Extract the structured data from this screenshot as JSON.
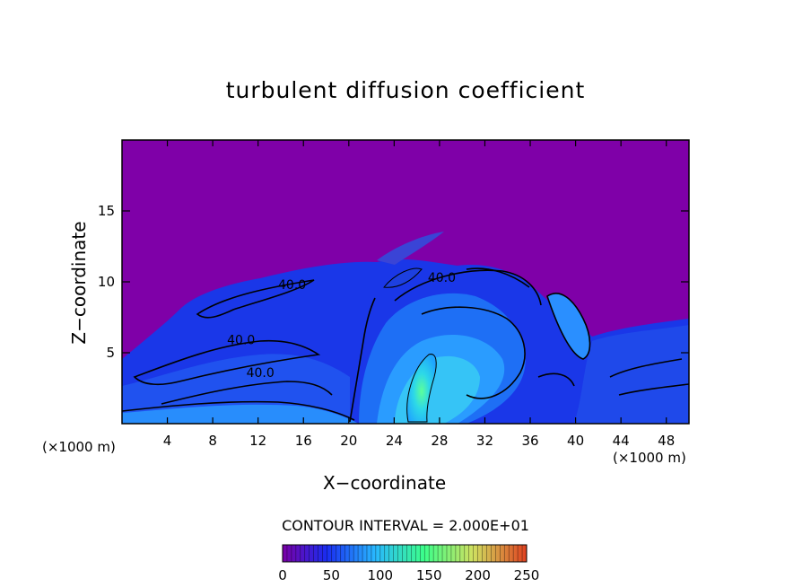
{
  "chart_data": {
    "type": "heatmap",
    "title": "turbulent diffusion coefficient",
    "xlabel": "X−coordinate",
    "ylabel": "Z−coordinate",
    "x_unit_left": "(×1000 m)",
    "x_unit_right": "(×1000 m)",
    "xlim": [
      0,
      50
    ],
    "ylim": [
      0,
      20
    ],
    "xticks": [
      4,
      8,
      12,
      16,
      20,
      24,
      28,
      32,
      36,
      40,
      44,
      48
    ],
    "yticks": [
      5,
      10,
      15
    ],
    "contour_interval_text": "CONTOUR INTERVAL = 2.000E+01",
    "contour_labels": [
      {
        "x": 15.0,
        "z": 9.5,
        "text": "40.0"
      },
      {
        "x": 10.5,
        "z": 5.6,
        "text": "40.0"
      },
      {
        "x": 12.2,
        "z": 3.3,
        "text": "40.0"
      },
      {
        "x": 28.2,
        "z": 10.0,
        "text": "40.0"
      }
    ],
    "colorbar": {
      "range": [
        0,
        250
      ],
      "ticks": [
        "0",
        "50",
        "100",
        "150",
        "200",
        "250"
      ],
      "colors": [
        "#7a00a6",
        "#1a2cf0",
        "#28b8ff",
        "#3cff8a",
        "#d0e060",
        "#e04020"
      ]
    },
    "background_value_color": "#7f00a8",
    "grid": false
  }
}
